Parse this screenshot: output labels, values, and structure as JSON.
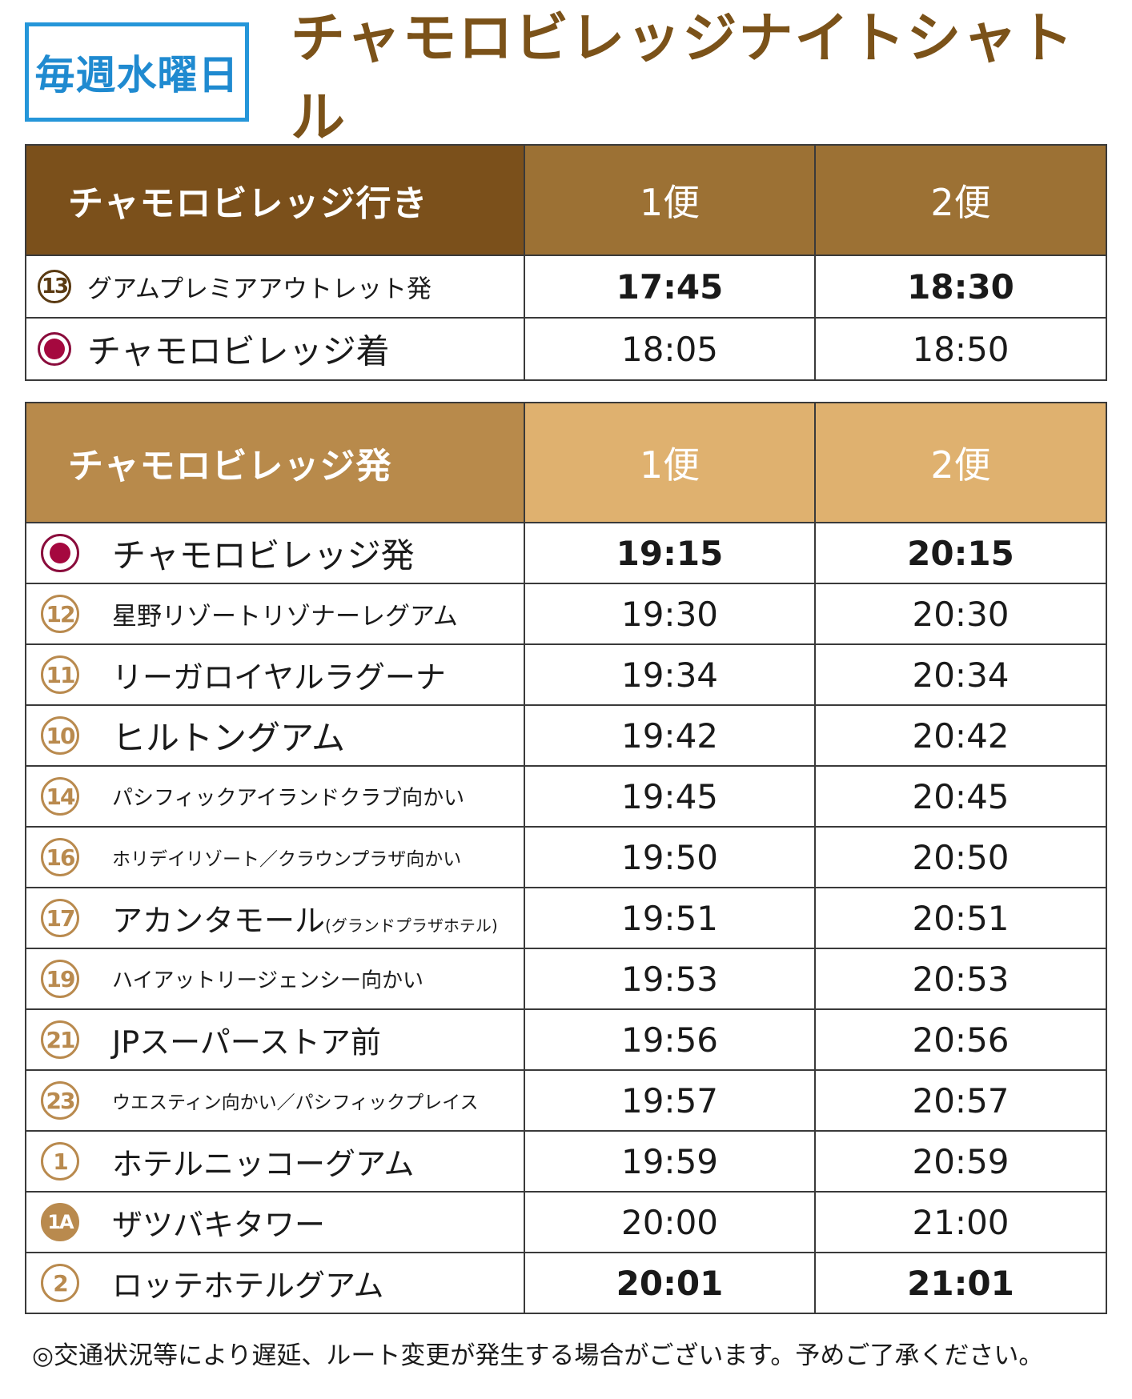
{
  "header": {
    "day_badge": "毎週水曜日",
    "title": "チャモロビレッジナイトシャトル"
  },
  "to_village": {
    "header": {
      "stop": "チャモロビレッジ行き",
      "trip1": "1便",
      "trip2": "2便"
    },
    "rows": [
      {
        "badge": "13",
        "name": "グアムプレミアアウトレット発",
        "t1": "17:45",
        "t2": "18:30"
      },
      {
        "badge": "",
        "name": "チャモロビレッジ着",
        "t1": "18:05",
        "t2": "18:50"
      }
    ]
  },
  "from_village": {
    "header": {
      "stop": "チャモロビレッジ発",
      "trip1": "1便",
      "trip2": "2便"
    },
    "rows": [
      {
        "badge": "",
        "name": "チャモロビレッジ発",
        "t1": "19:15",
        "t2": "20:15"
      },
      {
        "badge": "12",
        "name": "星野リゾートリゾナーレグアム",
        "t1": "19:30",
        "t2": "20:30"
      },
      {
        "badge": "11",
        "name": "リーガロイヤルラグーナ",
        "t1": "19:34",
        "t2": "20:34"
      },
      {
        "badge": "10",
        "name": "ヒルトングアム",
        "t1": "19:42",
        "t2": "20:42"
      },
      {
        "badge": "14",
        "name": "パシフィックアイランドクラブ向かい",
        "t1": "19:45",
        "t2": "20:45"
      },
      {
        "badge": "16",
        "name": "ホリデイリゾート／クラウンプラザ向かい",
        "t1": "19:50",
        "t2": "20:50"
      },
      {
        "badge": "17",
        "name": "アカンタモール",
        "note": "(グランドプラザホテル)",
        "t1": "19:51",
        "t2": "20:51"
      },
      {
        "badge": "19",
        "name": "ハイアットリージェンシー向かい",
        "t1": "19:53",
        "t2": "20:53"
      },
      {
        "badge": "21",
        "name": "JPスーパーストア前",
        "t1": "19:56",
        "t2": "20:56"
      },
      {
        "badge": "23",
        "name": "ウエスティン向かい／パシフィックプレイス",
        "t1": "19:57",
        "t2": "20:57"
      },
      {
        "badge": "1",
        "name": "ホテルニッコーグアム",
        "t1": "19:59",
        "t2": "20:59"
      },
      {
        "badge": "1A",
        "name": "ザツバキタワー",
        "t1": "20:00",
        "t2": "21:00"
      },
      {
        "badge": "2",
        "name": "ロッテホテルグアム",
        "t1": "20:01",
        "t2": "21:01"
      }
    ]
  },
  "footnote": "◎交通状況等により遅延、ルート変更が発生する場合がございます。予めご了承ください。",
  "colors": {
    "badge_blue": "#2596d9",
    "title_brown": "#7b5219",
    "header_dark": "#7b501b",
    "header_mid": "#9c7134",
    "header_light_left": "#b88a4b",
    "header_light": "#dfb16f",
    "badge_gold": "#b98a4e",
    "village_dot": "#a5083f"
  },
  "icons": {
    "village_marker": "target-circle-icon",
    "stop_marker": "numbered-circle-icon"
  }
}
